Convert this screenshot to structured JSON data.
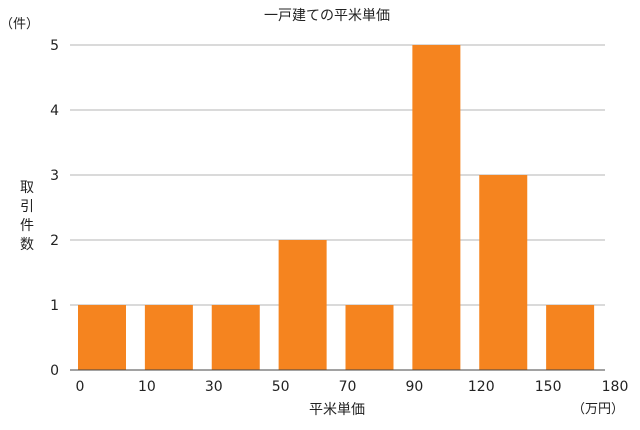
{
  "chart_data": {
    "type": "bar",
    "title": "一戸建ての平米単価",
    "xlabel": "平米単価",
    "x_unit": "（万円）",
    "ylabel": "取引件数",
    "y_unit": "（件）",
    "x_ticks": [
      "0",
      "10",
      "30",
      "50",
      "70",
      "90",
      "120",
      "150",
      "180"
    ],
    "categories": [
      "0-10",
      "10-30",
      "30-50",
      "50-70",
      "70-90",
      "90-120",
      "120-150",
      "150-180"
    ],
    "values": [
      1,
      1,
      1,
      2,
      1,
      5,
      3,
      1
    ],
    "ylim": [
      0,
      5
    ],
    "y_ticks": [
      0,
      1,
      2,
      3,
      4,
      5
    ],
    "grid": true,
    "colors": {
      "bar": "#f5841f",
      "grid": "#b5b5b5"
    }
  }
}
